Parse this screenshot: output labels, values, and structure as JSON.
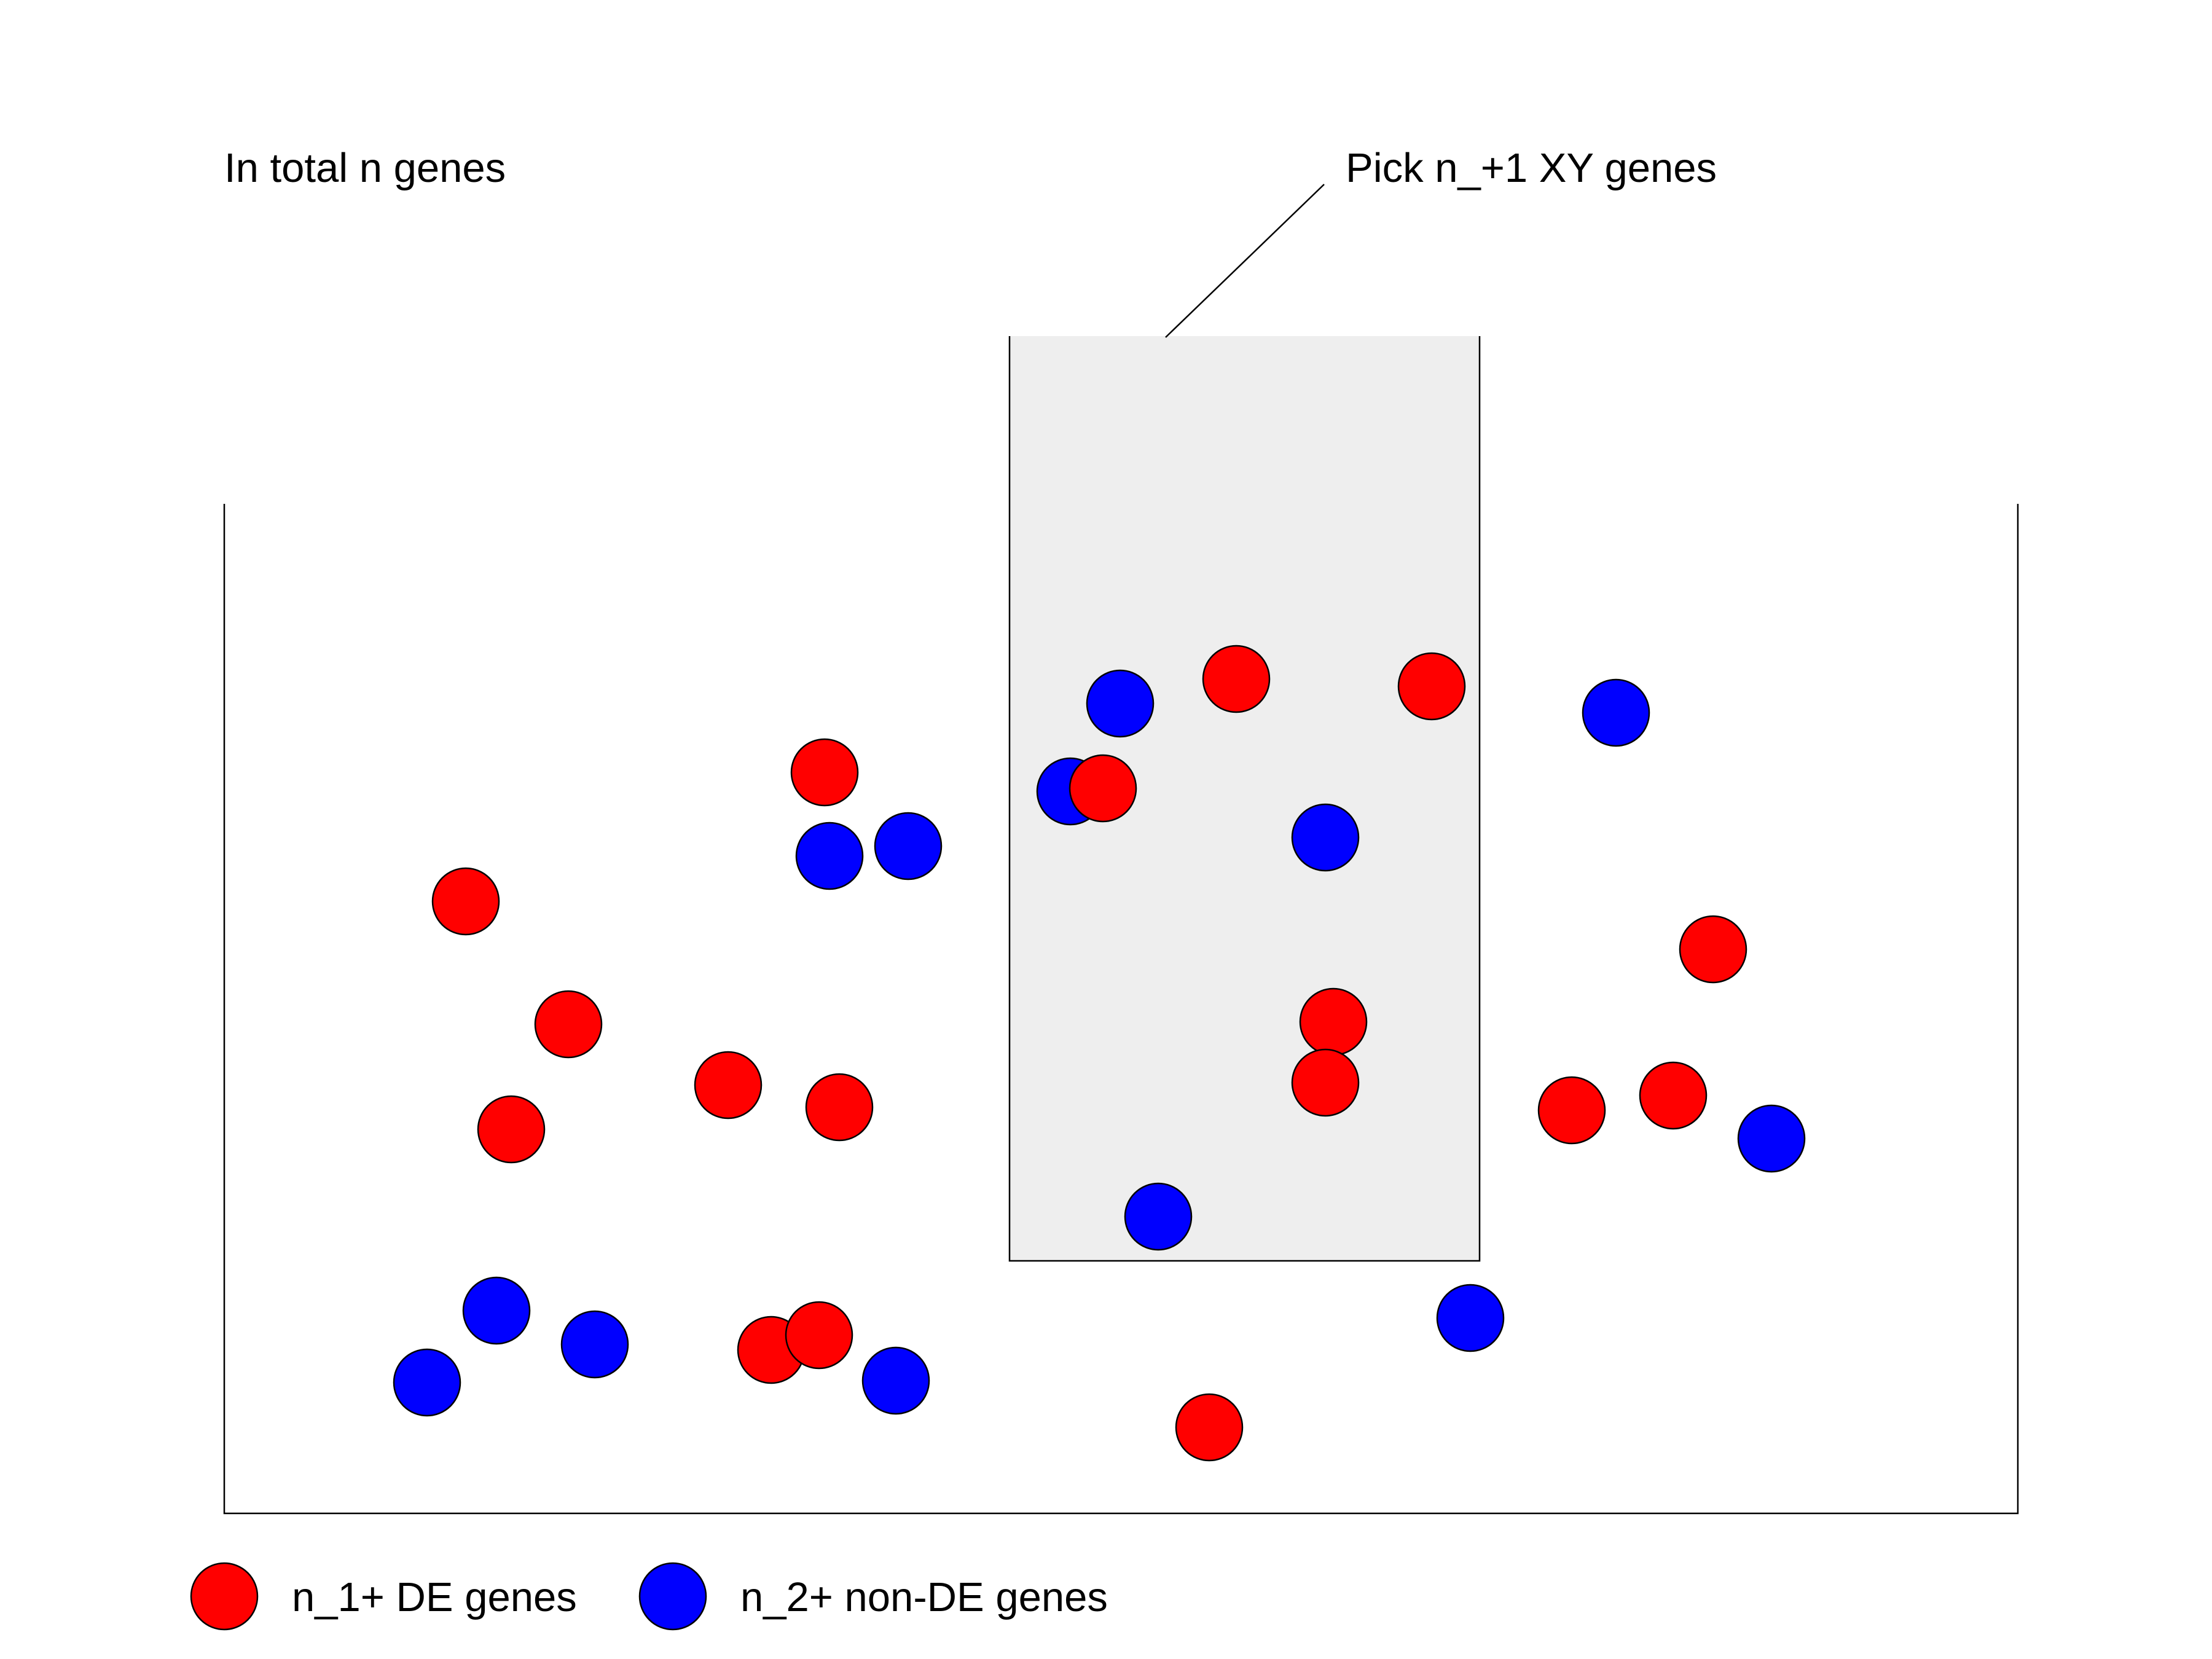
{
  "labels": {
    "total": "In total n genes",
    "pick": "Pick n_+1 XY genes"
  },
  "legend": {
    "de_label": "n_1+ DE genes",
    "non_de_label": "n_2+ non-DE genes"
  },
  "colors": {
    "de_gene": "#ff0000",
    "non_de_gene": "#0000ff",
    "selection_fill": "#eeeeee",
    "outline": "#000000"
  }
}
